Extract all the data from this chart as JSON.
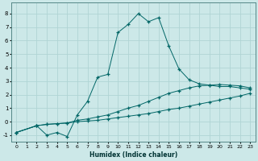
{
  "xlabel": "Humidex (Indice chaleur)",
  "bg_color": "#cce8e8",
  "grid_color": "#b0d4d4",
  "line_color": "#006666",
  "xlim": [
    -0.5,
    23.5
  ],
  "ylim": [
    -1.5,
    8.8
  ],
  "xticks": [
    0,
    1,
    2,
    3,
    4,
    5,
    6,
    7,
    8,
    9,
    10,
    11,
    12,
    13,
    14,
    15,
    16,
    17,
    18,
    19,
    20,
    21,
    22,
    23
  ],
  "yticks": [
    -1,
    0,
    1,
    2,
    3,
    4,
    5,
    6,
    7,
    8
  ],
  "line1_x": [
    0,
    2,
    3,
    4,
    5,
    6,
    7,
    8,
    9,
    10,
    11,
    12,
    13,
    14,
    15,
    16,
    17,
    18,
    19,
    20,
    21,
    22,
    23
  ],
  "line1_y": [
    -0.8,
    -0.3,
    -0.2,
    -0.15,
    -0.1,
    0.0,
    0.05,
    0.1,
    0.2,
    0.3,
    0.4,
    0.5,
    0.6,
    0.75,
    0.9,
    1.0,
    1.15,
    1.3,
    1.45,
    1.6,
    1.75,
    1.9,
    2.1
  ],
  "line2_x": [
    0,
    2,
    3,
    4,
    5,
    6,
    7,
    8,
    9,
    10,
    11,
    12,
    13,
    14,
    15,
    16,
    17,
    18,
    19,
    20,
    21,
    22,
    23
  ],
  "line2_y": [
    -0.8,
    -0.3,
    -0.2,
    -0.15,
    -0.1,
    0.1,
    0.2,
    0.35,
    0.5,
    0.75,
    1.0,
    1.2,
    1.5,
    1.8,
    2.1,
    2.3,
    2.5,
    2.65,
    2.7,
    2.75,
    2.7,
    2.65,
    2.5
  ],
  "line3_x": [
    0,
    2,
    3,
    4,
    5,
    6,
    7,
    8,
    9,
    10,
    11,
    12,
    13,
    14,
    15,
    16,
    17,
    18,
    19,
    20,
    21,
    22,
    23
  ],
  "line3_y": [
    -0.8,
    -0.3,
    -1.0,
    -0.8,
    -1.1,
    0.5,
    1.5,
    3.3,
    3.5,
    6.6,
    7.2,
    8.0,
    7.4,
    7.7,
    5.6,
    3.9,
    3.1,
    2.8,
    2.7,
    2.6,
    2.6,
    2.5,
    2.4
  ]
}
